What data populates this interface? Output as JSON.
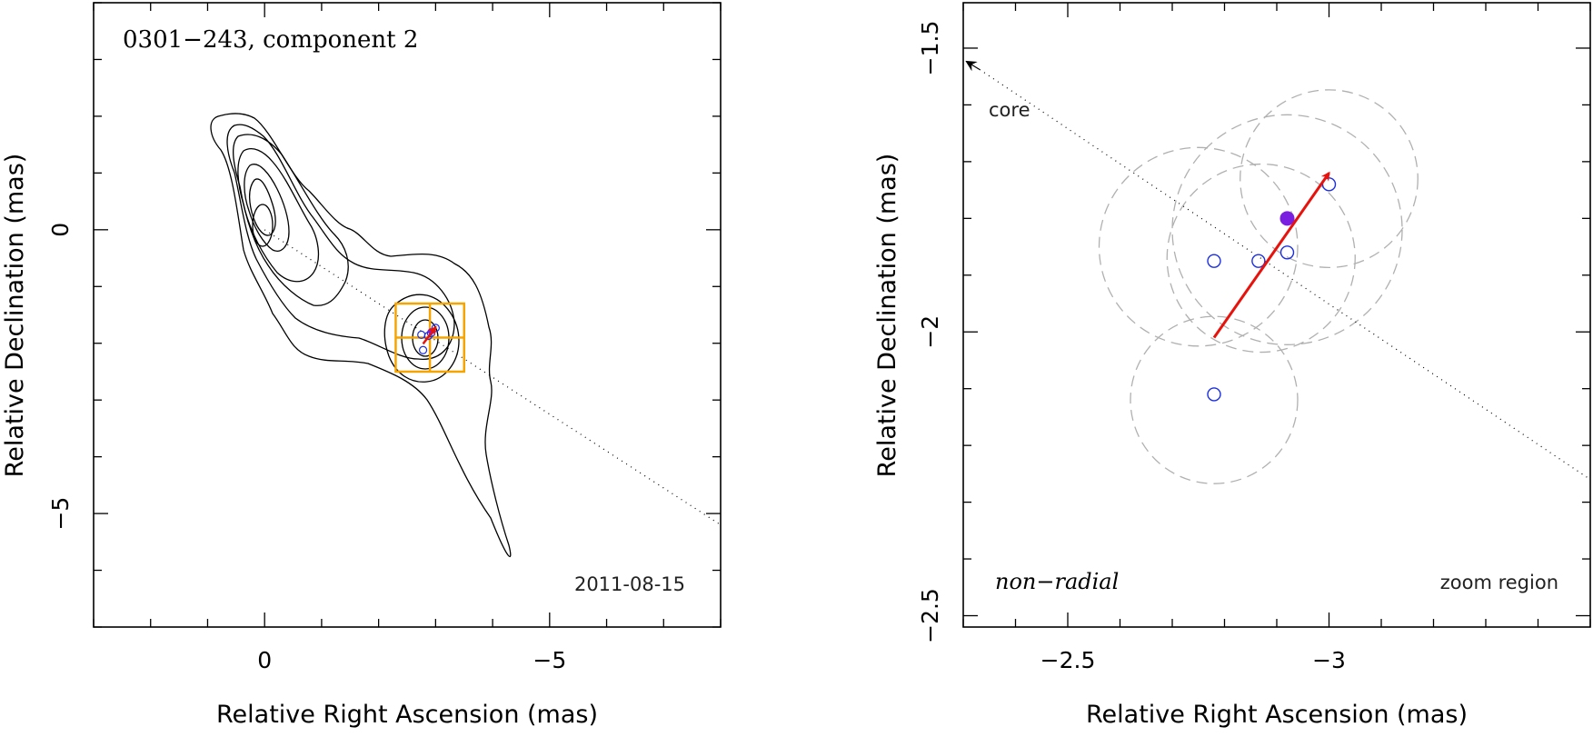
{
  "chart_data": [
    {
      "type": "scatter",
      "title": "0301−243, component 2",
      "date_label": "2011-08-15",
      "xlabel": "Relative Right Ascension (mas)",
      "ylabel": "Relative Declination (mas)",
      "xlim": [
        3.0,
        -8.0
      ],
      "ylim": [
        -7.0,
        4.0
      ],
      "xticks": [
        {
          "v": 0,
          "label": "0"
        },
        {
          "v": -5,
          "label": "−5"
        }
      ],
      "yticks": [
        {
          "v": 0,
          "label": "0"
        },
        {
          "v": -5,
          "label": "−5"
        }
      ],
      "contours": "black contour lines (jet emission map)",
      "core_line": {
        "from": [
          0,
          0
        ],
        "to": [
          -8.0,
          -5.2
        ]
      },
      "zoom_box": {
        "x": [
          -2.3,
          -3.5
        ],
        "y": [
          -1.3,
          -2.5
        ]
      },
      "points": [
        {
          "x": -2.75,
          "y": -1.85
        },
        {
          "x": -2.87,
          "y": -1.87
        },
        {
          "x": -2.92,
          "y": -1.82
        },
        {
          "x": -3.0,
          "y": -1.73
        },
        {
          "x": -2.78,
          "y": -2.12
        }
      ],
      "mean_point": {
        "x": -2.92,
        "y": -1.79
      },
      "arrow": {
        "from": [
          -2.78,
          -2.01
        ],
        "to": [
          -3.0,
          -1.72
        ]
      }
    },
    {
      "type": "scatter",
      "xlabel": "Relative Right Ascension (mas)",
      "ylabel": "Relative Declination (mas)",
      "xlim": [
        -2.3,
        -3.5
      ],
      "ylim": [
        -2.52,
        -1.42
      ],
      "xticks": [
        {
          "v": -2.5,
          "label": "−2.5"
        },
        {
          "v": -3,
          "label": "−3"
        }
      ],
      "yticks": [
        {
          "v": -1.5,
          "label": "−1.5"
        },
        {
          "v": -2,
          "label": "−2"
        },
        {
          "v": -2.5,
          "label": "−2.5"
        }
      ],
      "core_label": "core",
      "annotation_left": "non−radial",
      "annotation_right": "zoom region",
      "core_line": {
        "from": [
          -2.3,
          -1.52
        ],
        "to": [
          -3.5,
          -2.26
        ]
      },
      "error_circles": [
        {
          "x": -2.75,
          "y": -1.85,
          "r": 0.19
        },
        {
          "x": -2.87,
          "y": -1.87,
          "r": 0.18
        },
        {
          "x": -2.92,
          "y": -1.82,
          "r": 0.22
        },
        {
          "x": -3.0,
          "y": -1.73,
          "r": 0.17
        },
        {
          "x": -2.78,
          "y": -2.12,
          "r": 0.16
        }
      ],
      "points": [
        {
          "x": -2.78,
          "y": -1.875
        },
        {
          "x": -2.865,
          "y": -1.875
        },
        {
          "x": -2.92,
          "y": -1.86
        },
        {
          "x": -3.0,
          "y": -1.74
        },
        {
          "x": -2.78,
          "y": -2.11
        }
      ],
      "mean_point": {
        "x": -2.92,
        "y": -1.8
      },
      "arrow": {
        "from": [
          -2.78,
          -2.01
        ],
        "to": [
          -3.0,
          -1.72
        ]
      }
    }
  ]
}
